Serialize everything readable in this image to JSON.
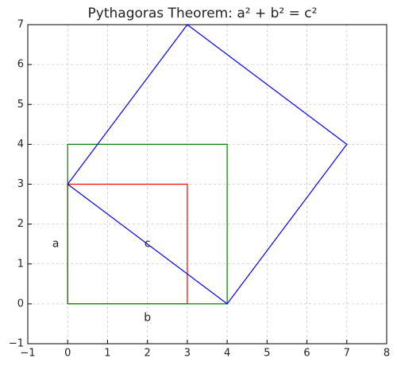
{
  "chart_data": {
    "type": "line",
    "title": "Pythagoras Theorem: a² + b² = c²",
    "series": [
      {
        "color": "#ff0000",
        "x": [
          0,
          3,
          3,
          0,
          0
        ],
        "values": [
          0,
          0,
          3,
          3,
          0
        ]
      },
      {
        "color": "#008000",
        "x": [
          0,
          4,
          4,
          0,
          0
        ],
        "values": [
          0,
          0,
          4,
          4,
          0
        ]
      },
      {
        "color": "#0000ff",
        "x": [
          0,
          4,
          7,
          3,
          0
        ],
        "values": [
          3,
          0,
          4,
          7,
          3
        ]
      }
    ],
    "annotations": [
      {
        "text": "a",
        "x": -0.3,
        "y": 1.5,
        "color": "#ff0000"
      },
      {
        "text": "b",
        "x": 2,
        "y": -0.35,
        "color": "#008000"
      },
      {
        "text": "c",
        "x": 2,
        "y": 1.5,
        "color": "#0000ff"
      }
    ],
    "xlim": [
      -1,
      8
    ],
    "ylim": [
      -1,
      7
    ],
    "xticks": [
      {
        "value": -1,
        "label": "−1"
      },
      0,
      1,
      2,
      3,
      4,
      5,
      6,
      7,
      8
    ],
    "yticks": [
      {
        "value": -1,
        "label": "−1"
      },
      0,
      1,
      2,
      3,
      4,
      5,
      6,
      7
    ],
    "grid": true
  }
}
